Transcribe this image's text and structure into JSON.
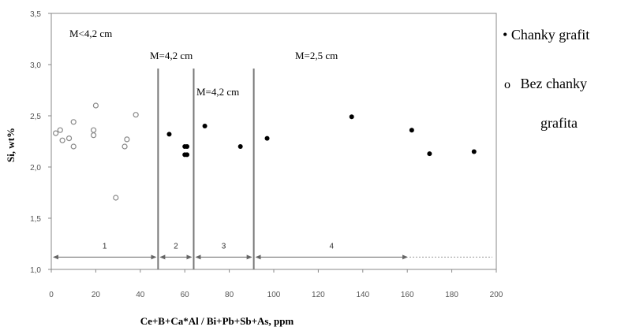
{
  "chart_data": {
    "type": "scatter",
    "xlabel": "Ce+B+Ca*Al / Bi+Pb+Sb+As, ppm",
    "ylabel": "Si, wt%",
    "xlim": [
      0,
      200
    ],
    "ylim": [
      1.0,
      3.5
    ],
    "x_ticks": [
      "0",
      "20",
      "40",
      "60",
      "80",
      "100",
      "120",
      "140",
      "160",
      "180",
      "200"
    ],
    "y_ticks": [
      "1,0",
      "1,5",
      "2,0",
      "2,5",
      "3,0",
      "3,5"
    ],
    "grid": false,
    "legend_position": "right",
    "series": [
      {
        "name": "Chanky grafit",
        "marker": "filled",
        "color": "#000000",
        "x": [
          53,
          60,
          61,
          60,
          61,
          69,
          85,
          97,
          135,
          162,
          170,
          190
        ],
        "y": [
          2.32,
          2.2,
          2.2,
          2.12,
          2.12,
          2.4,
          2.2,
          2.28,
          2.49,
          2.36,
          2.13,
          2.15
        ]
      },
      {
        "name": "Bez chanky grafita",
        "marker": "open",
        "color": "#888888",
        "x": [
          2,
          4,
          5,
          8,
          10,
          10,
          19,
          19,
          20,
          29,
          33,
          34,
          38
        ],
        "y": [
          2.33,
          2.36,
          2.26,
          2.28,
          2.44,
          2.2,
          2.31,
          2.36,
          2.6,
          1.7,
          2.2,
          2.27,
          2.51
        ]
      }
    ],
    "dividers_x": [
      48,
      64,
      91
    ],
    "regions": [
      {
        "label": "M<4,2 cm",
        "number": "1",
        "x_start": 0,
        "x_end": 48
      },
      {
        "label": "M=4,2 cm",
        "number": "2",
        "x_start": 48,
        "x_end": 64
      },
      {
        "label": "M=4,2 cm",
        "number": "3",
        "x_start": 64,
        "x_end": 91
      },
      {
        "label": "M=2,5 cm",
        "number": "4",
        "x_start": 91,
        "x_end": 161
      }
    ],
    "dashed_extension_x": [
      161,
      200
    ],
    "arrow_y": 1.12,
    "legend": {
      "filled_symbol": "•",
      "open_symbol": "o",
      "filled_label": "Chanky grafit",
      "open_label_line1": "Bez chanky",
      "open_label_line2": "grafita"
    }
  }
}
